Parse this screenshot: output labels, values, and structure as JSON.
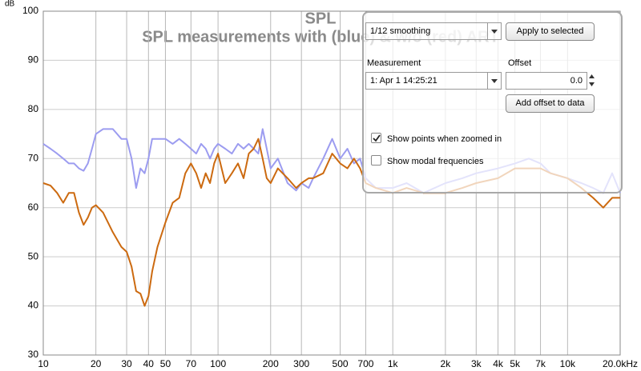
{
  "chart_data": {
    "type": "line",
    "title": "SPL",
    "subtitle": "SPL measurements with (blue) & w/o (red) ART",
    "y_label": "dB",
    "x_scale": "log",
    "grid": true,
    "x": [
      10,
      11,
      12,
      13,
      14,
      15,
      16,
      17,
      18,
      19,
      20,
      22,
      25,
      28,
      30,
      32,
      34,
      36,
      38,
      40,
      42,
      45,
      50,
      55,
      60,
      65,
      70,
      75,
      80,
      85,
      90,
      95,
      100,
      110,
      120,
      130,
      140,
      150,
      160,
      170,
      180,
      190,
      200,
      220,
      250,
      280,
      300,
      330,
      350,
      400,
      450,
      500,
      550,
      600,
      650,
      700,
      800,
      1000,
      1200,
      1500,
      2000,
      2500,
      3000,
      4000,
      5000,
      6000,
      7000,
      8000,
      10000,
      12000,
      14000,
      16000,
      18000,
      20000
    ],
    "series": [
      {
        "color": "#9c9cf0",
        "values": [
          73,
          72,
          71,
          70,
          69,
          69,
          68,
          67.5,
          69,
          72,
          75,
          76,
          76,
          74,
          74,
          70,
          64,
          68,
          67,
          70,
          74,
          74,
          74,
          73,
          74,
          73,
          72,
          71,
          73,
          72,
          70,
          72,
          73,
          72,
          71,
          73,
          72,
          73,
          72,
          71,
          76,
          72,
          68,
          70,
          65,
          63.5,
          65,
          64,
          66,
          70,
          74,
          70,
          72,
          69,
          70,
          66,
          64,
          64,
          65,
          63,
          65,
          66,
          67,
          68,
          69,
          70,
          69,
          67,
          66,
          65,
          64,
          63,
          67,
          63
        ]
      },
      {
        "color": "#cc6a10",
        "values": [
          65,
          64.5,
          63,
          61,
          63,
          63,
          59,
          56.5,
          58,
          60,
          60.5,
          59,
          55,
          52,
          51,
          48,
          43,
          42.5,
          40,
          42,
          47,
          52,
          57,
          61,
          62,
          67,
          69,
          67,
          64,
          67,
          65,
          69,
          71,
          65,
          67,
          69,
          66,
          71,
          72,
          74,
          70,
          66,
          65,
          68,
          66,
          64,
          65,
          66,
          66,
          67,
          71,
          69,
          68,
          70,
          68,
          65,
          64,
          63,
          64,
          63,
          63,
          64,
          65,
          66,
          68,
          68,
          68,
          67,
          66,
          64,
          62,
          60,
          62,
          62
        ]
      }
    ],
    "xlim": [
      10,
      20000
    ],
    "xticks": [
      10,
      20,
      30,
      40,
      50,
      70,
      100,
      200,
      300,
      500,
      700,
      {
        "value": 1000,
        "label": "1k"
      },
      {
        "value": 2000,
        "label": "2k"
      },
      {
        "value": 3000,
        "label": "3k"
      },
      {
        "value": 4000,
        "label": "4k"
      },
      {
        "value": 5000,
        "label": "5k"
      },
      {
        "value": 7000,
        "label": "7k"
      },
      {
        "value": 10000,
        "label": "10k"
      },
      {
        "value": 20000,
        "label": "20.0kHz"
      }
    ],
    "ylim": [
      30,
      100
    ],
    "yticks": [
      30,
      40,
      50,
      60,
      70,
      80,
      90,
      100
    ]
  },
  "panel": {
    "smoothing": "1/12 smoothing",
    "apply_button": "Apply to selected",
    "measurement_label": "Measurement",
    "offset_label": "Offset",
    "measurement": "1: Apr 1 14:25:21",
    "offset": "0.0",
    "offset_button": "Add offset to data",
    "checkboxes": [
      {
        "label": "Show points when zoomed in",
        "checked": true
      },
      {
        "label": "Show modal frequencies",
        "checked": false
      }
    ]
  }
}
